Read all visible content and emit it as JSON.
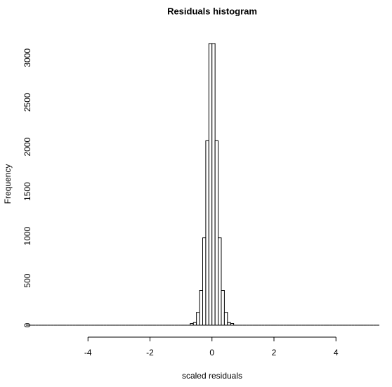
{
  "chart_data": {
    "type": "histogram",
    "title": "Residuals histogram",
    "x_label": "scaled residuals",
    "y_label": "Frequency",
    "bins": [
      -6.0,
      -5.9,
      -5.8,
      -5.7,
      -5.6,
      -5.5,
      -5.4,
      -5.3,
      -5.2,
      -5.1,
      -5.0,
      -4.9,
      -4.8,
      -4.7,
      -4.6,
      -4.5,
      -4.4,
      -4.3,
      -4.2,
      -4.1,
      -4.0,
      -3.9,
      -3.8,
      -3.7,
      -3.6,
      -3.5,
      -3.4,
      -3.3,
      -3.2,
      -3.1,
      -3.0,
      -2.9,
      -2.8,
      -2.7,
      -2.6,
      -2.5,
      -2.4,
      -2.3,
      -2.2,
      -2.1,
      -2.0,
      -1.9,
      -1.8,
      -1.7,
      -1.6,
      -1.5,
      -1.4,
      -1.3,
      -1.2,
      -1.1,
      -1.0,
      -0.9,
      -0.8,
      -0.7,
      -0.6,
      -0.5,
      -0.4,
      -0.3,
      -0.2,
      -0.1,
      0,
      0.1,
      0.2,
      0.3,
      0.4,
      0.5,
      0.6,
      0.7,
      0.8,
      0.9,
      1.0,
      1.1,
      1.2,
      1.3,
      1.4,
      1.5,
      1.6,
      1.7,
      1.8,
      1.9,
      2.0,
      2.1,
      2.2,
      2.3,
      2.4,
      2.5,
      2.6,
      2.7,
      2.8,
      2.9,
      3.0,
      3.1,
      3.2,
      3.3,
      3.4,
      3.5,
      3.6,
      3.7,
      3.8,
      3.9,
      4.0,
      4.1,
      4.2,
      4.3,
      4.4,
      4.5,
      4.6,
      4.7,
      4.8,
      4.9,
      5.0,
      5.1,
      5.2,
      5.3,
      5.4
    ],
    "values": [
      0,
      0,
      0,
      0,
      0,
      0,
      0,
      0,
      0,
      0,
      0,
      0,
      0,
      0,
      0,
      0,
      0,
      0,
      0,
      0,
      0,
      0,
      0,
      0,
      0,
      0,
      0,
      0,
      0,
      0,
      0,
      0,
      0,
      0,
      0,
      0,
      0,
      0,
      0,
      0,
      0,
      0,
      0,
      0,
      0,
      0,
      0,
      0,
      0,
      0,
      0,
      0,
      0,
      20,
      30,
      145,
      390,
      980,
      2070,
      3160,
      3160,
      2070,
      980,
      390,
      145,
      30,
      20,
      0,
      0,
      0,
      0,
      0,
      0,
      0,
      0,
      0,
      0,
      0,
      0,
      0,
      0,
      0,
      0,
      0,
      0,
      0,
      0,
      0,
      0,
      0,
      0,
      0,
      0,
      0,
      0,
      0,
      0,
      0,
      0,
      0,
      0,
      0,
      0,
      0,
      0,
      0,
      0,
      0,
      0,
      0,
      0,
      0,
      0,
      0
    ],
    "color": "#ffffff",
    "edgecolor": "#000000",
    "xlim": [
      -6.0,
      5.4
    ],
    "ylim": [
      0,
      3160
    ],
    "xticks": [
      -4,
      -2,
      0,
      2,
      4
    ],
    "yticks": [
      0,
      500,
      1000,
      1500,
      2000,
      2500,
      3000
    ]
  }
}
